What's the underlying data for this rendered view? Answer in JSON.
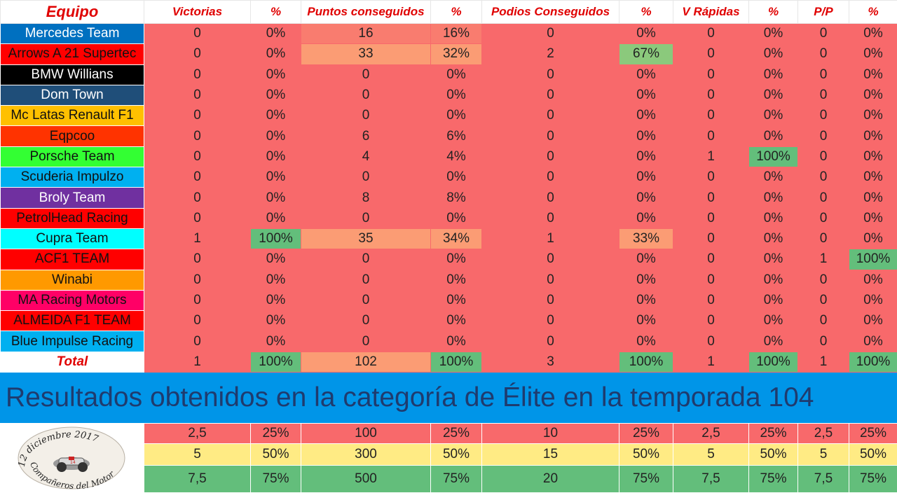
{
  "headers": [
    "Equipo",
    "Victorias",
    "%",
    "Puntos conseguidos",
    "%",
    "Podios Conseguidos",
    "%",
    "V Rápidas",
    "%",
    "P/P",
    "%"
  ],
  "teams": [
    {
      "name": "Mercedes Team",
      "bg": "#0070c0",
      "fg": "#ffffff",
      "vals": [
        "0",
        "0%",
        "16",
        "16%",
        "0",
        "0%",
        "0",
        "0%",
        "0",
        "0%"
      ]
    },
    {
      "name": "Arrows A 21 Supertec",
      "bg": "#ff0000",
      "fg": "#111111",
      "vals": [
        "0",
        "0%",
        "33",
        "32%",
        "2",
        "67%",
        "0",
        "0%",
        "0",
        "0%"
      ]
    },
    {
      "name": "BMW Willians",
      "bg": "#000000",
      "fg": "#ffffff",
      "vals": [
        "0",
        "0%",
        "0",
        "0%",
        "0",
        "0%",
        "0",
        "0%",
        "0",
        "0%"
      ]
    },
    {
      "name": "Dom Town",
      "bg": "#1f4e79",
      "fg": "#ffffff",
      "vals": [
        "0",
        "0%",
        "0",
        "0%",
        "0",
        "0%",
        "0",
        "0%",
        "0",
        "0%"
      ]
    },
    {
      "name": "Mc Latas Renault F1",
      "bg": "#ffc000",
      "fg": "#111111",
      "vals": [
        "0",
        "0%",
        "0",
        "0%",
        "0",
        "0%",
        "0",
        "0%",
        "0",
        "0%"
      ]
    },
    {
      "name": "Eqpcoo",
      "bg": "#ff3300",
      "fg": "#111111",
      "vals": [
        "0",
        "0%",
        "6",
        "6%",
        "0",
        "0%",
        "0",
        "0%",
        "0",
        "0%"
      ]
    },
    {
      "name": "Porsche Team",
      "bg": "#33ff33",
      "fg": "#111111",
      "vals": [
        "0",
        "0%",
        "4",
        "4%",
        "0",
        "0%",
        "1",
        "100%",
        "0",
        "0%"
      ]
    },
    {
      "name": "Scuderia Impulzo",
      "bg": "#00b0f0",
      "fg": "#111111",
      "vals": [
        "0",
        "0%",
        "0",
        "0%",
        "0",
        "0%",
        "0",
        "0%",
        "0",
        "0%"
      ]
    },
    {
      "name": "Broly Team",
      "bg": "#7030a0",
      "fg": "#ffffff",
      "vals": [
        "0",
        "0%",
        "8",
        "8%",
        "0",
        "0%",
        "0",
        "0%",
        "0",
        "0%"
      ]
    },
    {
      "name": "PetrolHead Racing",
      "bg": "#ff0000",
      "fg": "#111111",
      "vals": [
        "0",
        "0%",
        "0",
        "0%",
        "0",
        "0%",
        "0",
        "0%",
        "0",
        "0%"
      ]
    },
    {
      "name": "Cupra Team",
      "bg": "#00ffff",
      "fg": "#111111",
      "vals": [
        "1",
        "100%",
        "35",
        "34%",
        "1",
        "33%",
        "0",
        "0%",
        "0",
        "0%"
      ]
    },
    {
      "name": "ACF1 TEAM",
      "bg": "#ff0000",
      "fg": "#111111",
      "vals": [
        "0",
        "0%",
        "0",
        "0%",
        "0",
        "0%",
        "0",
        "0%",
        "1",
        "100%"
      ]
    },
    {
      "name": "Winabi",
      "bg": "#ff9900",
      "fg": "#111111",
      "vals": [
        "0",
        "0%",
        "0",
        "0%",
        "0",
        "0%",
        "0",
        "0%",
        "0",
        "0%"
      ]
    },
    {
      "name": "MA Racing Motors",
      "bg": "#ff0066",
      "fg": "#111111",
      "vals": [
        "0",
        "0%",
        "0",
        "0%",
        "0",
        "0%",
        "0",
        "0%",
        "0",
        "0%"
      ]
    },
    {
      "name": "ALMEIDA F1 TEAM",
      "bg": "#ff0000",
      "fg": "#111111",
      "vals": [
        "0",
        "0%",
        "0",
        "0%",
        "0",
        "0%",
        "0",
        "0%",
        "0",
        "0%"
      ]
    },
    {
      "name": "Blue Impulse Racing",
      "bg": "#00b0f0",
      "fg": "#111111",
      "vals": [
        "0",
        "0%",
        "0",
        "0%",
        "0",
        "0%",
        "0",
        "0%",
        "0",
        "0%"
      ]
    }
  ],
  "total": {
    "label": "Total",
    "vals": [
      "1",
      "100%",
      "102",
      "100%",
      "3",
      "100%",
      "1",
      "100%",
      "1",
      "100%"
    ]
  },
  "banner": "Resultados obtenidos en la categoría de Élite en la temporada 104",
  "thresholds": [
    [
      "2,5",
      "25%",
      "100",
      "25%",
      "10",
      "25%",
      "2,5",
      "25%",
      "2,5",
      "25%"
    ],
    [
      "5",
      "50%",
      "300",
      "50%",
      "15",
      "50%",
      "5",
      "50%",
      "5",
      "50%"
    ],
    [
      "7,5",
      "75%",
      "500",
      "75%",
      "20",
      "75%",
      "7,5",
      "75%",
      "7,5",
      "75%"
    ]
  ],
  "logo_text": "12 diciembre 2017 Compañeros del Motor"
}
